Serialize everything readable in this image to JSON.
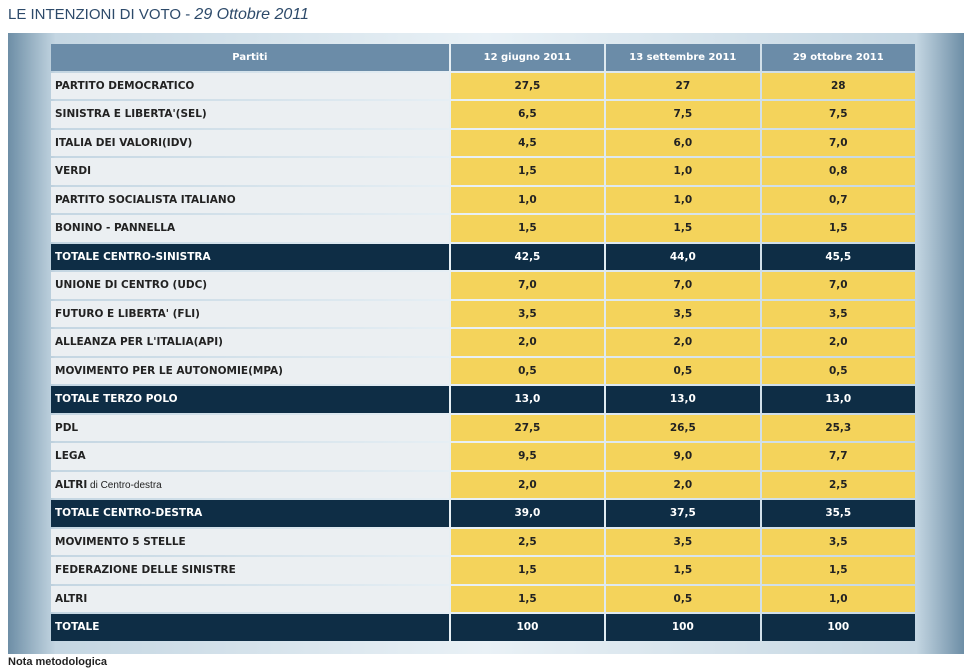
{
  "header": {
    "title": "LE INTENZIONI DI VOTO - ",
    "date": "29 Ottobre 2011"
  },
  "table": {
    "columns": [
      "Partiti",
      "12 giugno 2011",
      "13 settembre 2011",
      "29 ottobre 2011"
    ],
    "rows": [
      {
        "party": "PARTITO DEMOCRATICO",
        "values": [
          "27,5",
          "27",
          "28"
        ]
      },
      {
        "party": "SINISTRA E LIBERTA'(SEL)",
        "values": [
          "6,5",
          "7,5",
          "7,5"
        ]
      },
      {
        "party": "ITALIA DEI VALORI(IDV)",
        "values": [
          "4,5",
          "6,0",
          "7,0"
        ]
      },
      {
        "party": "VERDI",
        "values": [
          "1,5",
          "1,0",
          "0,8"
        ]
      },
      {
        "party": "PARTITO SOCIALISTA ITALIANO",
        "values": [
          "1,0",
          "1,0",
          "0,7"
        ]
      },
      {
        "party": "BONINO - PANNELLA",
        "values": [
          "1,5",
          "1,5",
          "1,5"
        ]
      },
      {
        "party": "TOTALE CENTRO-SINISTRA",
        "values": [
          "42,5",
          "44,0",
          "45,5"
        ]
      },
      {
        "party": "UNIONE DI CENTRO (UDC)",
        "values": [
          "7,0",
          "7,0",
          "7,0"
        ]
      },
      {
        "party": "FUTURO E LIBERTA' (FLI)",
        "values": [
          "3,5",
          "3,5",
          "3,5"
        ]
      },
      {
        "party": "ALLEANZA PER L'ITALIA(API)",
        "values": [
          "2,0",
          "2,0",
          "2,0"
        ]
      },
      {
        "party": "MOVIMENTO PER LE AUTONOMIE(MPA)",
        "values": [
          "0,5",
          "0,5",
          "0,5"
        ]
      },
      {
        "party": "TOTALE TERZO POLO",
        "values": [
          "13,0",
          "13,0",
          "13,0"
        ]
      },
      {
        "party": "PDL",
        "values": [
          "27,5",
          "26,5",
          "25,3"
        ]
      },
      {
        "party": "LEGA",
        "values": [
          "9,5",
          "9,0",
          "7,7"
        ]
      },
      {
        "party": "ALTRI",
        "party_suffix": " di Centro-destra",
        "values": [
          "2,0",
          "2,0",
          "2,5"
        ]
      },
      {
        "party": "TOTALE CENTRO-DESTRA",
        "values": [
          "39,0",
          "37,5",
          "35,5"
        ]
      },
      {
        "party": "MOVIMENTO 5 STELLE",
        "values": [
          "2,5",
          "3,5",
          "3,5"
        ]
      },
      {
        "party": "FEDERAZIONE DELLE SINISTRE",
        "values": [
          "1,5",
          "1,5",
          "1,5"
        ]
      },
      {
        "party": "ALTRI",
        "values": [
          "1,5",
          "0,5",
          "1,0"
        ]
      },
      {
        "party": "TOTALE",
        "values": [
          "100",
          "100",
          "100"
        ]
      }
    ]
  },
  "footer": {
    "note": "Nota metodologica"
  },
  "colors": {
    "header_bg": "#6b8ca8",
    "total_bg": "#0e2d45",
    "value_bg": "#f4d35b",
    "party_bg": "#ebeff2",
    "title_text": "#2d4a6a"
  }
}
